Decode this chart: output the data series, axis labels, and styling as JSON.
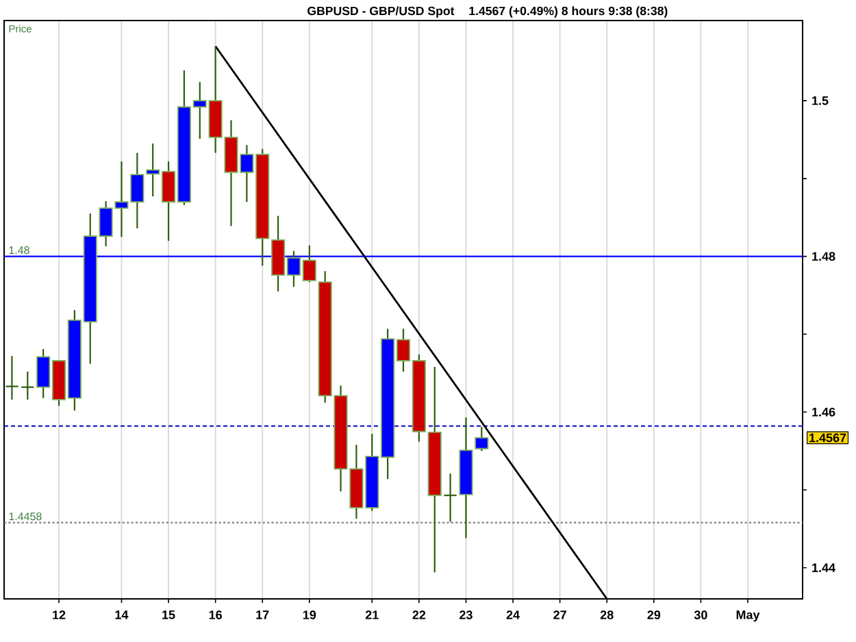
{
  "chart_data": {
    "type": "candlestick",
    "title": "GBPUSD - GBP/USD Spot",
    "subtitle": "1.4567 (+0.49%)    8 hours  9:38 (8:38)",
    "ylabel": "Price",
    "categories": [
      null,
      null,
      null,
      "12",
      null,
      null,
      null,
      "14",
      null,
      null,
      "15",
      null,
      null,
      "16",
      null,
      null,
      "17",
      null,
      null,
      "19",
      null,
      null,
      null,
      "21",
      null,
      null,
      "22",
      null,
      null,
      "23",
      null,
      null,
      "24",
      null,
      null,
      "27",
      null,
      null,
      "28",
      null,
      null,
      "29",
      null,
      null,
      "30",
      null,
      null,
      "May",
      null,
      null,
      null
    ],
    "ohlc": [
      [
        1.4633,
        1.4672,
        1.4616,
        1.4633
      ],
      [
        1.4632,
        1.4652,
        1.4616,
        1.4632
      ],
      [
        1.4632,
        1.4681,
        1.4618,
        1.4671
      ],
      [
        1.4666,
        1.4666,
        1.4608,
        1.4616
      ],
      [
        1.4618,
        1.4731,
        1.4602,
        1.4718
      ],
      [
        1.4716,
        1.4855,
        1.4662,
        1.4826
      ],
      [
        1.4826,
        1.4871,
        1.4813,
        1.4862
      ],
      [
        1.4862,
        1.4922,
        1.4825,
        1.487
      ],
      [
        1.487,
        1.4933,
        1.4836,
        1.4905
      ],
      [
        1.4906,
        1.4945,
        1.4877,
        1.4911
      ],
      [
        1.4909,
        1.4922,
        1.482,
        1.487
      ],
      [
        1.487,
        1.5039,
        1.4866,
        1.4992
      ],
      [
        1.4992,
        1.5024,
        1.4951,
        1.5
      ],
      [
        1.5,
        1.507,
        1.4933,
        1.4953
      ],
      [
        1.4953,
        1.4975,
        1.4839,
        1.4908
      ],
      [
        1.4908,
        1.4943,
        1.487,
        1.4931
      ],
      [
        1.4931,
        1.4938,
        1.4788,
        1.4823
      ],
      [
        1.4821,
        1.4852,
        1.4755,
        1.4776
      ],
      [
        1.4776,
        1.4807,
        1.4761,
        1.4798
      ],
      [
        1.4795,
        1.4814,
        1.4767,
        1.4769
      ],
      [
        1.4767,
        1.4781,
        1.4612,
        1.4621
      ],
      [
        1.4621,
        1.4634,
        1.4498,
        1.4527
      ],
      [
        1.4527,
        1.4558,
        1.4463,
        1.4477
      ],
      [
        1.4477,
        1.4572,
        1.4473,
        1.4543
      ],
      [
        1.4542,
        1.4707,
        1.4514,
        1.4694
      ],
      [
        1.4693,
        1.4707,
        1.4652,
        1.4666
      ],
      [
        1.4666,
        1.4674,
        1.4562,
        1.4575
      ],
      [
        1.4574,
        1.4658,
        1.4394,
        1.4493
      ],
      [
        1.4493,
        1.4521,
        1.4459,
        1.4493
      ],
      [
        1.4494,
        1.4593,
        1.4438,
        1.4551
      ],
      [
        1.4553,
        1.4581,
        1.455,
        1.4567
      ],
      null,
      null,
      null,
      null,
      null,
      null,
      null,
      null,
      null,
      null,
      null,
      null,
      null,
      null,
      null,
      null,
      null,
      null,
      null,
      null
    ],
    "colors": [
      "#2e5e0e",
      "#2e5e0e",
      "#0000ff",
      "#cc0000",
      "#0000ff",
      "#0000ff",
      "#0000ff",
      "#0000ff",
      "#0000ff",
      "#0000ff",
      "#cc0000",
      "#0000ff",
      "#0000ff",
      "#cc0000",
      "#cc0000",
      "#0000ff",
      "#cc0000",
      "#cc0000",
      "#0000ff",
      "#cc0000",
      "#cc0000",
      "#cc0000",
      "#cc0000",
      "#0000ff",
      "#0000ff",
      "#cc0000",
      "#cc0000",
      "#cc0000",
      "#2e5e0e",
      "#0000ff",
      "#0000ff",
      null,
      null,
      null,
      null,
      null,
      null,
      null,
      null,
      null,
      null,
      null,
      null,
      null,
      null,
      null,
      null,
      null,
      null,
      null,
      null
    ],
    "series": [
      {
        "type": "line",
        "x": [
          "16",
          "28"
        ],
        "values": [
          1.507,
          1.436
        ],
        "color": "#000000"
      }
    ],
    "ylim": [
      1.436,
      1.5103
    ],
    "yticks": [
      1.44,
      {
        "value": 1.45,
        "label": null
      },
      1.46,
      {
        "value": 1.47,
        "label": null
      },
      1.48,
      {
        "value": 1.49,
        "label": null
      },
      1.5
    ],
    "ref_lines": [
      {
        "axis": "y",
        "value": 1.48,
        "label": "1.48",
        "color": "#0000ff",
        "line_style": "solid"
      },
      {
        "axis": "y",
        "value": 1.4582,
        "color": "#0000cc",
        "line_style": "dashed"
      },
      {
        "axis": "y",
        "value": 1.4458,
        "label": "1.4458",
        "color": "#808080",
        "line_style": "dotted"
      }
    ],
    "annotations": [
      "1.4567"
    ],
    "grid": "x"
  }
}
